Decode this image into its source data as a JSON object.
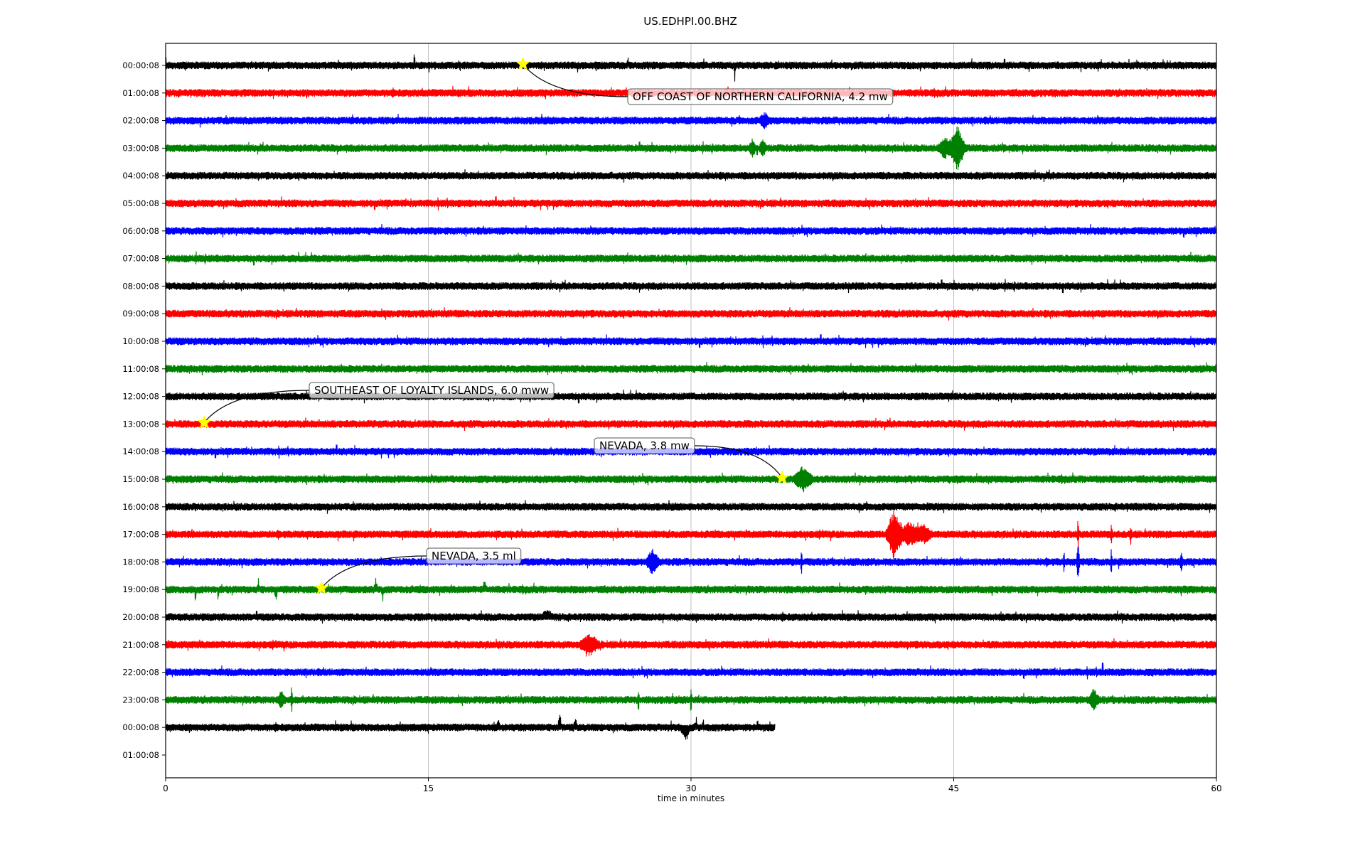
{
  "chart_data": {
    "type": "line",
    "title": "US.EDHPI.00.BHZ",
    "xlabel": "time in minutes",
    "ylabel": "",
    "xlim": [
      0,
      60
    ],
    "xticks": [
      "0",
      "15",
      "30",
      "45",
      "60"
    ],
    "xtick_values": [
      0,
      15,
      30,
      45,
      60
    ],
    "grid": "vertical",
    "colors": [
      "#000000",
      "#ff0000",
      "#0000ff",
      "#008000"
    ],
    "star_color": "#ffff00",
    "yticks": [
      "00:00:08",
      "01:00:08",
      "02:00:08",
      "03:00:08",
      "04:00:08",
      "05:00:08",
      "06:00:08",
      "07:00:08",
      "08:00:08",
      "09:00:08",
      "10:00:08",
      "11:00:08",
      "12:00:08",
      "13:00:08",
      "14:00:08",
      "15:00:08",
      "16:00:08",
      "17:00:08",
      "18:00:08",
      "19:00:08",
      "20:00:08",
      "21:00:08",
      "22:00:08",
      "23:00:08",
      "00:00:08",
      "01:00:08"
    ],
    "rows_with_data": 25,
    "last_row_end_minute": 34.8,
    "noise_amplitude": 1,
    "bursts": [
      {
        "row": 0,
        "minute": 0.0,
        "amp": 2.5,
        "dur": 0.05
      },
      {
        "row": 0,
        "minute": 14.2,
        "amp": 3,
        "dur": 0.05
      },
      {
        "row": 0,
        "minute": 26.4,
        "amp": 2,
        "dur": 0.05
      },
      {
        "row": 0,
        "minute": 32.5,
        "amp": -4,
        "dur": 0.05
      },
      {
        "row": 0,
        "minute": 47.9,
        "amp": 2,
        "dur": 0.05
      },
      {
        "row": 2,
        "minute": 34.2,
        "amp": 1.8,
        "dur": 0.3
      },
      {
        "row": 3,
        "minute": 33.5,
        "amp": 2,
        "dur": 0.2
      },
      {
        "row": 3,
        "minute": 34.1,
        "amp": 2,
        "dur": 0.2
      },
      {
        "row": 3,
        "minute": 44.5,
        "amp": 2.5,
        "dur": 0.4
      },
      {
        "row": 3,
        "minute": 45.2,
        "amp": 6,
        "dur": 0.5
      },
      {
        "row": 15,
        "minute": 36.4,
        "amp": 3,
        "dur": 0.6
      },
      {
        "row": 17,
        "minute": 41.6,
        "amp": 7,
        "dur": 0.5
      },
      {
        "row": 17,
        "minute": 42.5,
        "amp": 3,
        "dur": 0.7
      },
      {
        "row": 17,
        "minute": 43.3,
        "amp": 2,
        "dur": 0.5
      },
      {
        "row": 17,
        "minute": 52.1,
        "amp": -5,
        "dur": 0.05
      },
      {
        "row": 17,
        "minute": 54.0,
        "amp": -4,
        "dur": 0.05
      },
      {
        "row": 17,
        "minute": 55.1,
        "amp": -3,
        "dur": 0.05
      },
      {
        "row": 18,
        "minute": 27.8,
        "amp": 3,
        "dur": 0.4
      },
      {
        "row": 18,
        "minute": 36.3,
        "amp": -3.5,
        "dur": 0.05
      },
      {
        "row": 18,
        "minute": 51.3,
        "amp": 3,
        "dur": 0.05
      },
      {
        "row": 18,
        "minute": 52.1,
        "amp": -5,
        "dur": 0.1
      },
      {
        "row": 18,
        "minute": 54.0,
        "amp": 4,
        "dur": 0.05
      },
      {
        "row": 18,
        "minute": 58.0,
        "amp": 2,
        "dur": 0.1
      },
      {
        "row": 19,
        "minute": 1.7,
        "amp": -4,
        "dur": 0.05
      },
      {
        "row": 19,
        "minute": 3.0,
        "amp": -4,
        "dur": 0.05
      },
      {
        "row": 19,
        "minute": 5.3,
        "amp": 2.5,
        "dur": 0.05
      },
      {
        "row": 19,
        "minute": 6.3,
        "amp": -3,
        "dur": 0.1
      },
      {
        "row": 19,
        "minute": 12.0,
        "amp": 3,
        "dur": 0.1
      },
      {
        "row": 19,
        "minute": 12.4,
        "amp": -3.5,
        "dur": 0.05
      },
      {
        "row": 19,
        "minute": 18.2,
        "amp": 2.5,
        "dur": 0.1
      },
      {
        "row": 20,
        "minute": 5.2,
        "amp": 2,
        "dur": 0.05
      },
      {
        "row": 20,
        "minute": 21.8,
        "amp": 1.5,
        "dur": 0.4
      },
      {
        "row": 21,
        "minute": 24.2,
        "amp": 2.5,
        "dur": 0.6
      },
      {
        "row": 22,
        "minute": 53.5,
        "amp": 4.5,
        "dur": 0.05
      },
      {
        "row": 23,
        "minute": 6.6,
        "amp": 2,
        "dur": 0.2
      },
      {
        "row": 23,
        "minute": 7.2,
        "amp": -4,
        "dur": 0.05
      },
      {
        "row": 23,
        "minute": 27.0,
        "amp": -3,
        "dur": 0.05
      },
      {
        "row": 23,
        "minute": 30.0,
        "amp": 4,
        "dur": 0.05
      },
      {
        "row": 23,
        "minute": 53.0,
        "amp": 2.5,
        "dur": 0.3
      },
      {
        "row": 24,
        "minute": 19.0,
        "amp": 2,
        "dur": 0.1
      },
      {
        "row": 24,
        "minute": 22.5,
        "amp": 4,
        "dur": 0.1
      },
      {
        "row": 24,
        "minute": 23.4,
        "amp": 2,
        "dur": 0.1
      },
      {
        "row": 24,
        "minute": 29.7,
        "amp": -3,
        "dur": 0.3
      },
      {
        "row": 24,
        "minute": 30.3,
        "amp": 3.5,
        "dur": 0.05
      },
      {
        "row": 24,
        "minute": 30.7,
        "amp": 3,
        "dur": 0.05
      }
    ],
    "events": [
      {
        "label": "OFF COAST OF NORTHERN CALIFORNIA, 4.2 mw",
        "row": 0,
        "minute": 20.4
      },
      {
        "label": "SOUTHEAST OF LOYALTY ISLANDS, 6.0 mww",
        "row": 13,
        "minute": 2.2
      },
      {
        "label": "NEVADA, 3.8 mw",
        "row": 15,
        "minute": 35.2
      },
      {
        "label": "NEVADA, 3.5 ml",
        "row": 19,
        "minute": 8.9
      }
    ]
  }
}
